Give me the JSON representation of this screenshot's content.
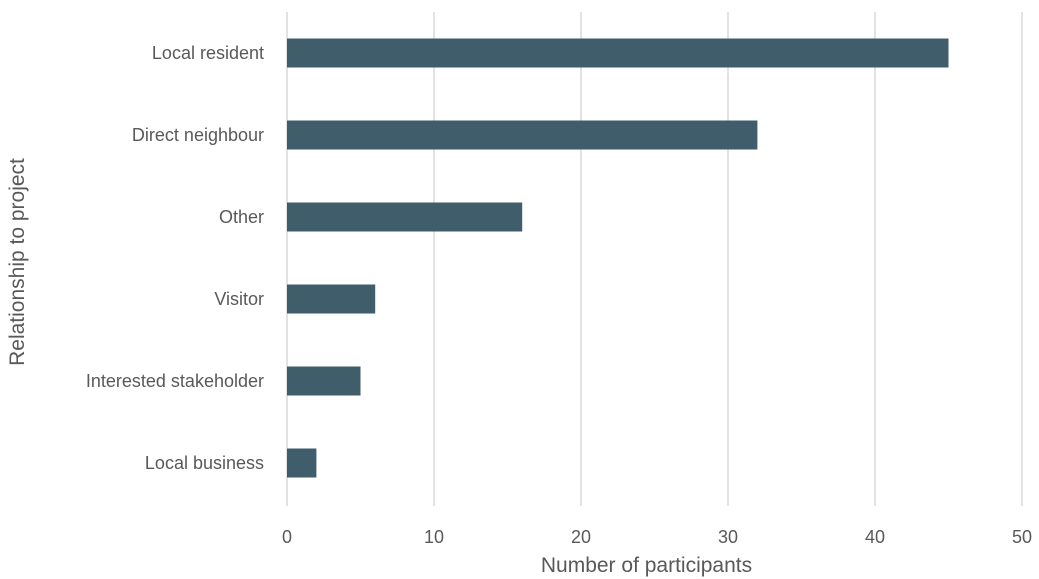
{
  "chart_data": {
    "type": "bar",
    "orientation": "horizontal",
    "categories": [
      "Local resident",
      "Direct neighbour",
      "Other",
      "Visitor",
      "Interested stakeholder",
      "Local business"
    ],
    "values": [
      45,
      32,
      16,
      6,
      5,
      2
    ],
    "xlabel": "Number of participants",
    "ylabel": "Relationship to project",
    "xlim": [
      0,
      50
    ],
    "xticks": [
      "0",
      "10",
      "20",
      "30",
      "40",
      "50"
    ],
    "grid": "vertical",
    "legend": "none",
    "bar_color": "#3f5d6b",
    "grid_color": "#d9d9d9",
    "text_color": "#595959"
  }
}
